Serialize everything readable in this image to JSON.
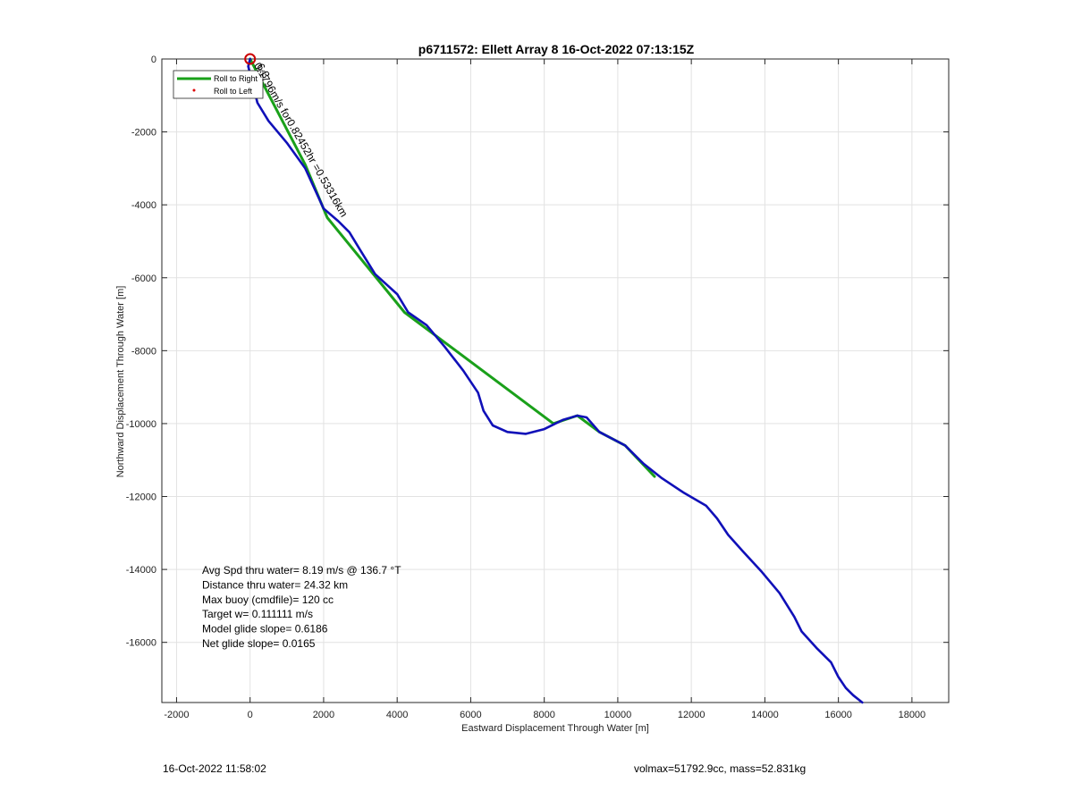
{
  "chart_data": {
    "type": "line",
    "title": "p6711572: Ellett Array 8 16-Oct-2022 07:13:15Z",
    "xlabel": "Eastward Displacement Through Water [m]",
    "ylabel": "Northward Displacement Through Water [m]",
    "xlim": [
      -2400,
      19000
    ],
    "ylim": [
      -17650,
      0
    ],
    "xticks": [
      -2000,
      0,
      2000,
      4000,
      6000,
      8000,
      10000,
      12000,
      14000,
      16000,
      18000
    ],
    "yticks": [
      0,
      -2000,
      -4000,
      -6000,
      -8000,
      -10000,
      -12000,
      -14000,
      -16000
    ],
    "grid": true,
    "legend": {
      "placement": "top-left",
      "entries": [
        {
          "label": "Roll to Right",
          "color": "#1aa01a",
          "style": "line"
        },
        {
          "label": "Roll to Left",
          "color": "#dd0000",
          "style": "dot"
        }
      ]
    },
    "series": [
      {
        "color": "#1aa01a",
        "x": [
          0,
          1500,
          2100,
          4200,
          8250,
          8900,
          9500,
          10200,
          11000
        ],
        "y": [
          0,
          -2900,
          -4350,
          -6950,
          -10000,
          -9780,
          -10230,
          -10600,
          -11450
        ]
      },
      {
        "color": "#1010b8",
        "x": [
          0,
          -50,
          50,
          200,
          500,
          1000,
          1500,
          2000,
          2400,
          2700,
          3000,
          3400,
          4000,
          4300,
          4800,
          5300,
          5800,
          6200,
          6350,
          6600,
          7000,
          7500,
          8000,
          8500,
          8900,
          9150,
          9500,
          10200,
          10700,
          11200,
          11800,
          12400,
          12700,
          13000,
          13400,
          13900,
          14400,
          14800,
          15000,
          15400,
          15800,
          16000,
          16200,
          16400,
          16650
        ],
        "y": [
          0,
          -200,
          -600,
          -1200,
          -1700,
          -2300,
          -3000,
          -4100,
          -4450,
          -4750,
          -5250,
          -5900,
          -6450,
          -6950,
          -7300,
          -7900,
          -8550,
          -9150,
          -9650,
          -10050,
          -10230,
          -10280,
          -10150,
          -9900,
          -9780,
          -9830,
          -10230,
          -10600,
          -11100,
          -11500,
          -11900,
          -12250,
          -12600,
          -13050,
          -13500,
          -14050,
          -14650,
          -15300,
          -15700,
          -16150,
          -16550,
          -16950,
          -17250,
          -17450,
          -17650
        ]
      }
    ],
    "start_marker": {
      "x": 0,
      "y": 0,
      "color": "#cc0000"
    },
    "segment_label": {
      "text": "0.1796m/s for0.82452hr =0.53316km",
      "overlap_text": "6.3",
      "x": 0,
      "y": 0
    },
    "annotations": [
      "Avg Spd thru water=  8.19 m/s @ 136.7 °T",
      "Distance thru water= 24.32 km",
      "Max buoy (cmdfile)= 120 cc",
      "Target w= 0.111111 m/s",
      "Model glide slope= 0.6186",
      "Net glide slope= 0.0165"
    ]
  },
  "footer": {
    "left": "16-Oct-2022 11:58:02",
    "right": "volmax=51792.9cc, mass=52.831kg"
  }
}
